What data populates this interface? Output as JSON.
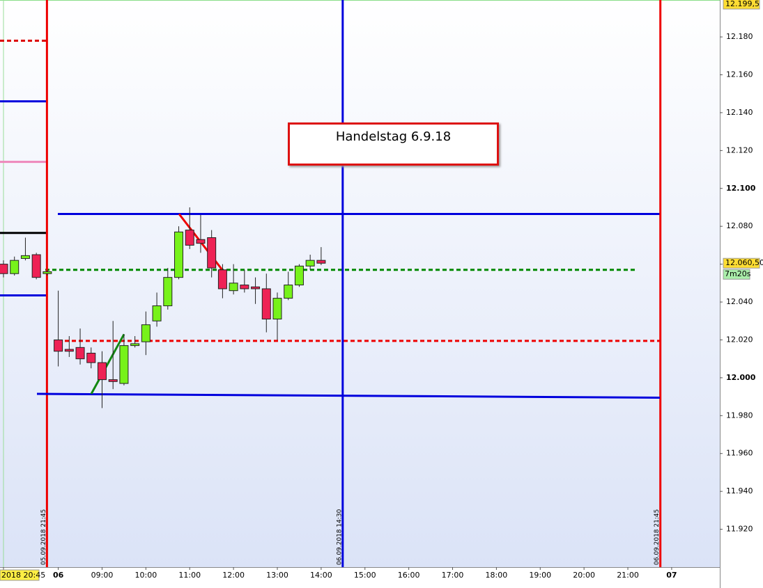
{
  "chart_data": {
    "type": "candlestick",
    "categories": [
      "2018 20:45",
      null,
      null,
      null,
      null,
      "06",
      null,
      null,
      null,
      "09:00",
      null,
      null,
      null,
      "10:00",
      null,
      null,
      null,
      "11:00",
      null,
      null,
      null,
      "12:00",
      null,
      null,
      null,
      "13:00",
      null,
      null,
      null,
      "14:00",
      null,
      null,
      null,
      "15:00",
      null,
      null,
      null,
      "16:00",
      null,
      null,
      null,
      "17:00",
      null,
      null,
      null,
      "18:00",
      null,
      null,
      null,
      "19:00",
      null,
      null,
      null,
      "20:00",
      null,
      null,
      null,
      "21:00",
      null,
      null,
      null,
      "07"
    ],
    "open": [
      12060,
      12055,
      12063,
      12065,
      12055,
      12020,
      12015,
      12016,
      12013,
      12008,
      11999,
      11997,
      12017,
      12019,
      12030,
      12038,
      12053,
      12078,
      12073,
      12074,
      12057,
      12046,
      12049,
      12048,
      12047,
      12031,
      12042,
      12049,
      12059,
      12062,
      null,
      null,
      null,
      null,
      null,
      null,
      null,
      null,
      null,
      null,
      null,
      null,
      null,
      null,
      null,
      null,
      null,
      null,
      null,
      null,
      null,
      null,
      null,
      null,
      null,
      null,
      null,
      null,
      null,
      null,
      null,
      null
    ],
    "high": [
      12062,
      12064,
      12074,
      12066,
      12057,
      12046,
      12022,
      12026,
      12016,
      12014,
      12030,
      12023,
      12022,
      12035,
      12045,
      12058,
      12080,
      12090,
      12086,
      12078,
      12060,
      12060,
      12057,
      12053,
      12055,
      12045,
      12056,
      12060,
      12065,
      12069,
      null,
      null,
      null,
      null,
      null,
      null,
      null,
      null,
      null,
      null,
      null,
      null,
      null,
      null,
      null,
      null,
      null,
      null,
      null,
      null,
      null,
      null,
      null,
      null,
      null,
      null,
      null,
      null,
      null,
      null,
      null,
      null
    ],
    "low": [
      12053,
      12054,
      12062,
      12052,
      12054,
      12006,
      12011,
      12007,
      12005,
      11984,
      11994,
      11996,
      12016,
      12012,
      12027,
      12036,
      12052,
      12068,
      12066,
      12053,
      12042,
      12044,
      12045,
      12039,
      12024,
      12020,
      12041,
      12048,
      12057,
      12059.5,
      null,
      null,
      null,
      null,
      null,
      null,
      null,
      null,
      null,
      null,
      null,
      null,
      null,
      null,
      null,
      null,
      null,
      null,
      null,
      null,
      null,
      null,
      null,
      null,
      null,
      null,
      null,
      null,
      null,
      null,
      null,
      null
    ],
    "close": [
      12055,
      12062,
      12064.5,
      12053,
      12056,
      12014,
      12014,
      12010,
      12008,
      11999,
      11998,
      12017,
      12018,
      12028,
      12038,
      12053,
      12077,
      12070,
      12071,
      12058,
      12047,
      12050,
      12047,
      12047,
      12031,
      12042,
      12049,
      12059,
      12062,
      12060.5,
      null,
      null,
      null,
      null,
      null,
      null,
      null,
      null,
      null,
      null,
      null,
      null,
      null,
      null,
      null,
      null,
      null,
      null,
      null,
      null,
      null,
      null,
      null,
      null,
      null,
      null,
      null,
      null,
      null,
      null,
      null,
      null
    ],
    "up_color": "#77f21a",
    "down_color": "#ee2255",
    "ylim": [
      11900,
      12199.5
    ],
    "yticks": [
      {
        "value": 11920,
        "label": "11.920"
      },
      {
        "value": 11940,
        "label": "11.940"
      },
      {
        "value": 11960,
        "label": "11.960"
      },
      {
        "value": 11980,
        "label": "11.980"
      },
      {
        "value": 12000,
        "label": "12.000"
      },
      {
        "value": 12020,
        "label": "12.020"
      },
      {
        "value": 12040,
        "label": "12.040"
      },
      {
        "value": 12060,
        "label": "12.060"
      },
      {
        "value": 12080,
        "label": "12.080"
      },
      {
        "value": 12100,
        "label": "12.100"
      },
      {
        "value": 12120,
        "label": "12.120"
      },
      {
        "value": 12140,
        "label": "12.140"
      },
      {
        "value": 12160,
        "label": "12.160"
      },
      {
        "value": 12180,
        "label": "12.180"
      }
    ],
    "levels": [
      {
        "value": 12178,
        "color": "#dd0000",
        "dash": true
      },
      {
        "value": 12146,
        "color": "#0000dd",
        "dash": false
      },
      {
        "value": 12114,
        "color": "#ee88bb",
        "dash": false
      },
      {
        "value": 12076.5,
        "color": "#000000",
        "dash": false
      },
      {
        "value": 12043.5,
        "color": "#0000dd",
        "dash": false
      },
      {
        "value": 12086.5,
        "color": "#0000dd",
        "dash": false
      },
      {
        "value": 12057,
        "color": "#008800",
        "dash": true
      },
      {
        "value": 12019.5,
        "color": "#ee0000",
        "dash": true
      }
    ],
    "trend_lines": [
      {
        "values": [
          11991.5,
          11989.5
        ],
        "color": "#0000dd"
      },
      {
        "values": [
          11991.5,
          12023
        ],
        "color": "#118811"
      },
      {
        "values": [
          12086.5,
          12056.5
        ],
        "color": "#ee0000"
      }
    ],
    "vertical_lines": [
      {
        "label": "05.09.2018 21:45",
        "color": "#ee0000"
      },
      {
        "label": "06.09.2018 14:30",
        "color": "#0000dd"
      },
      {
        "label": "06.09.2018 21:45",
        "color": "#ee0000"
      }
    ],
    "annotation": "Handelstag 6.9.18",
    "price_markers": [
      {
        "value": 12199.5,
        "label": "12.199,5"
      },
      {
        "value": 12060.5,
        "label": "12.060,50"
      }
    ],
    "countdown": "7m20s"
  }
}
